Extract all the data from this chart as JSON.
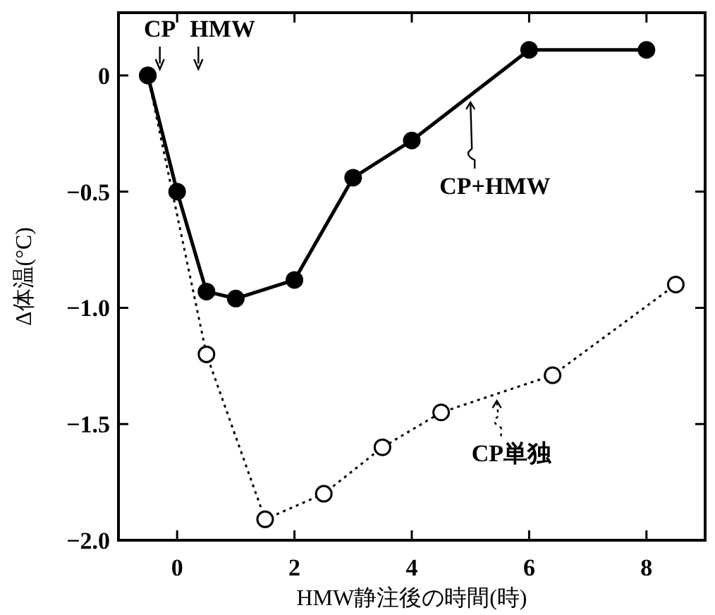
{
  "chart_data": {
    "type": "line",
    "xlabel": "HMW静注後の時間(時)",
    "ylabel": "Δ体温(°C)",
    "xlim": [
      -1,
      9
    ],
    "ylim": [
      -2.0,
      0.27
    ],
    "xticks": [
      0,
      2,
      4,
      6,
      8
    ],
    "yticks": [
      {
        "value": 0,
        "label": "0"
      },
      {
        "value": -0.5,
        "label": "−0.5"
      },
      {
        "value": -1.0,
        "label": "−1.0"
      },
      {
        "value": -1.5,
        "label": "−1.5"
      },
      {
        "value": -2.0,
        "label": "−2.0"
      }
    ],
    "marker": "circle",
    "grid": false,
    "legend": "right",
    "series": [
      {
        "name": "CP+HMW",
        "color": "#000000",
        "line_style": "solid",
        "x": [
          -0.5,
          0,
          0.5,
          1,
          2,
          3,
          4,
          6,
          8
        ],
        "values": [
          0,
          -0.5,
          -0.93,
          -0.96,
          -0.88,
          -0.44,
          -0.28,
          0.11,
          0.11
        ]
      },
      {
        "name": "CP単独",
        "color": "#000000",
        "line_style": "dotted",
        "x": [
          -0.5,
          0.5,
          1.5,
          2.5,
          3.5,
          4.5,
          6.4,
          8.5
        ],
        "values": [
          0,
          -1.2,
          -1.91,
          -1.8,
          -1.6,
          -1.45,
          -1.29,
          -0.9
        ]
      }
    ],
    "annotations": [
      "CP",
      "HMW"
    ]
  }
}
